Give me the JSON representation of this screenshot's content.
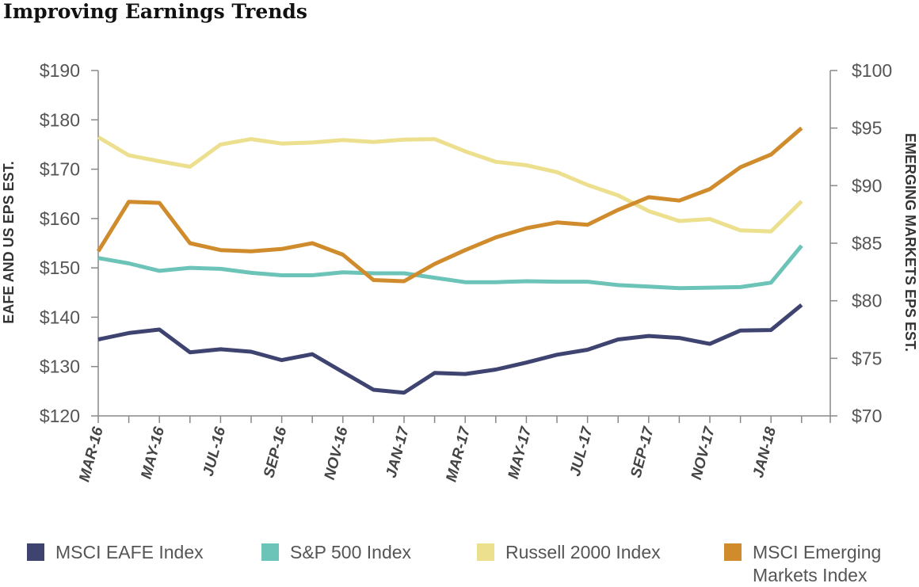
{
  "title": "Improving Earnings Trends",
  "chart_data": {
    "type": "line",
    "title": "Improving Earnings Trends",
    "ylabel_left": "EAFE AND US EPS EST.",
    "ylabel_right": "EMERGING MARKETS EPS EST.",
    "ylim_left": [
      120,
      190
    ],
    "ylim_right": [
      70,
      100
    ],
    "yticks_left": [
      "$120",
      "$130",
      "$140",
      "$150",
      "$160",
      "$170",
      "$180",
      "$190"
    ],
    "yticks_right": [
      "$70",
      "$75",
      "$80",
      "$85",
      "$90",
      "$95",
      "$100"
    ],
    "x_ticks": [
      "MAR-16",
      "MAY-16",
      "JUL-16",
      "SEP-16",
      "NOV-16",
      "JAN-17",
      "MAR-17",
      "MAY-17",
      "JUL-17",
      "SEP-17",
      "NOV-17",
      "JAN-18"
    ],
    "x": [
      "MAR-16",
      "",
      "MAY-16",
      "",
      "JUL-16",
      "",
      "SEP-16",
      "",
      "NOV-16",
      "",
      "JAN-17",
      "",
      "MAR-17",
      "",
      "MAY-17",
      "",
      "JUL-17",
      "",
      "SEP-17",
      "",
      "NOV-17",
      "",
      "JAN-18",
      ""
    ],
    "grid": false,
    "legend_position": "bottom",
    "series": [
      {
        "name": "MSCI EAFE Index",
        "axis": "left",
        "color": "#3e4370",
        "values": [
          135.5,
          136.8,
          137.5,
          132.9,
          133.5,
          133.0,
          131.3,
          132.5,
          128.9,
          125.3,
          124.7,
          128.7,
          128.5,
          129.4,
          130.8,
          132.4,
          133.4,
          135.5,
          136.2,
          135.8,
          134.6,
          137.3,
          137.4,
          142.5
        ]
      },
      {
        "name": "S&P 500 Index",
        "axis": "left",
        "color": "#6cc3b8",
        "values": [
          152.0,
          150.9,
          149.4,
          150.0,
          149.8,
          149.0,
          148.5,
          148.5,
          149.1,
          148.9,
          148.9,
          148.0,
          147.1,
          147.1,
          147.3,
          147.2,
          147.2,
          146.5,
          146.2,
          145.9,
          146.0,
          146.1,
          147.0,
          154.5
        ]
      },
      {
        "name": "Russell 2000 Index",
        "axis": "left",
        "color": "#ecdf8e",
        "values": [
          176.5,
          172.8,
          171.6,
          170.5,
          175.0,
          176.1,
          175.2,
          175.4,
          175.9,
          175.5,
          176.0,
          176.1,
          173.6,
          171.5,
          170.8,
          169.4,
          166.8,
          164.7,
          161.5,
          159.5,
          159.9,
          157.6,
          157.4,
          163.5
        ]
      },
      {
        "name": "MSCI Emerging\nMarkets Index",
        "axis": "right",
        "color": "#d08c2c",
        "values": [
          84.3,
          88.6,
          88.5,
          85.0,
          84.4,
          84.3,
          84.5,
          85.0,
          84.0,
          81.8,
          81.7,
          83.2,
          84.4,
          85.5,
          86.3,
          86.8,
          86.6,
          87.9,
          89.0,
          88.7,
          89.7,
          91.6,
          92.7,
          95.0
        ]
      }
    ]
  },
  "legend": {
    "items": [
      {
        "label": "MSCI EAFE Index",
        "color": "#3e4370"
      },
      {
        "label": "S&P 500 Index",
        "color": "#6cc3b8"
      },
      {
        "label": "Russell 2000 Index",
        "color": "#ecdf8e"
      },
      {
        "label": "MSCI Emerging\nMarkets Index",
        "color": "#d08c2c"
      }
    ]
  }
}
